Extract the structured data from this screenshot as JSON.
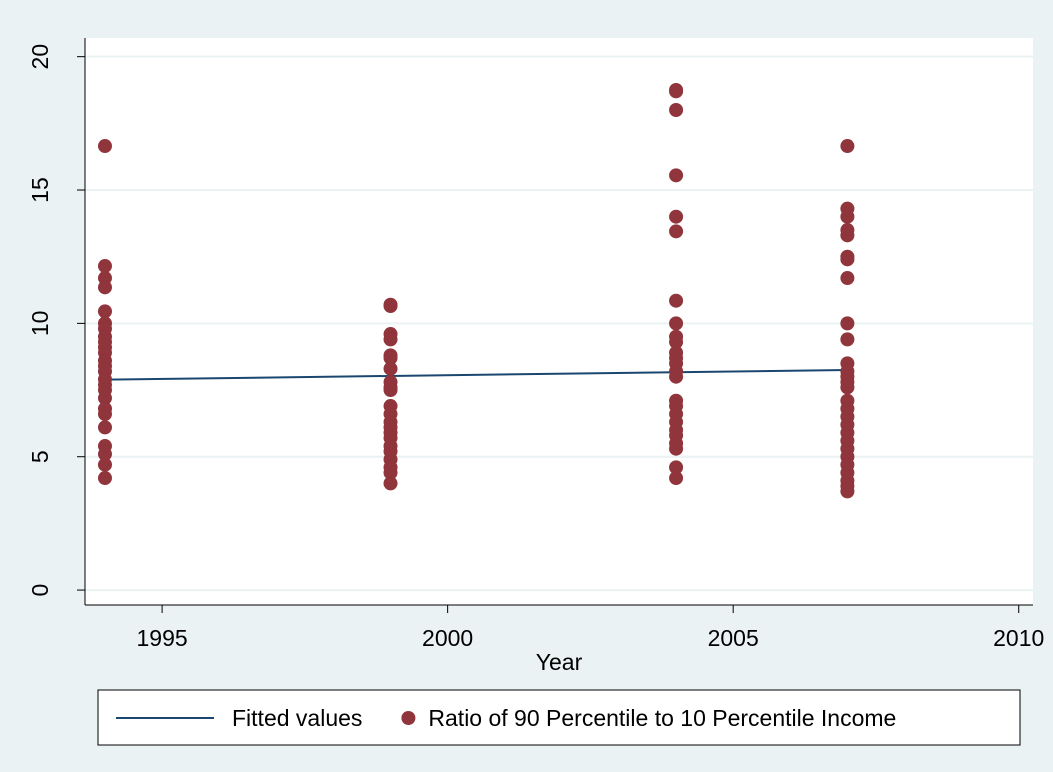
{
  "chart_data": {
    "type": "scatter",
    "xlabel": "Year",
    "xlim": [
      1993.65,
      2010.25
    ],
    "ylim": [
      -0.56,
      20.7
    ],
    "xticks": [
      1995,
      2000,
      2005,
      2010
    ],
    "yticks": [
      0,
      5,
      10,
      15,
      20
    ],
    "grid": true,
    "legend": "bottom",
    "series": [
      {
        "name": "Fitted values",
        "type": "line",
        "color": "#1a476f",
        "x": [
          1994,
          2007
        ],
        "values": [
          7.89,
          8.25
        ]
      },
      {
        "name": "Ratio of 90 Percentile to 10 Percentile Income",
        "type": "scatter",
        "color": "#90353b",
        "x": [
          1994,
          1994,
          1994,
          1994,
          1994,
          1994,
          1994,
          1994,
          1994,
          1994,
          1994,
          1994,
          1994,
          1994,
          1994,
          1994,
          1994,
          1994,
          1994,
          1994,
          1994,
          1994,
          1994,
          1994,
          1994,
          1999,
          1999,
          1999,
          1999,
          1999,
          1999,
          1999,
          1999,
          1999,
          1999,
          1999,
          1999,
          1999,
          1999,
          1999,
          1999,
          1999,
          1999,
          1999,
          1999,
          1999,
          1999,
          2004,
          2004,
          2004,
          2004,
          2004,
          2004,
          2004,
          2004,
          2004,
          2004,
          2004,
          2004,
          2004,
          2004,
          2004,
          2004,
          2004,
          2004,
          2004,
          2004,
          2004,
          2004,
          2004,
          2004,
          2004,
          2007,
          2007,
          2007,
          2007,
          2007,
          2007,
          2007,
          2007,
          2007,
          2007,
          2007,
          2007,
          2007,
          2007,
          2007,
          2007,
          2007,
          2007,
          2007,
          2007,
          2007,
          2007,
          2007,
          2007,
          2007,
          2007,
          2007,
          2007
        ],
        "values": [
          16.65,
          12.15,
          11.7,
          11.35,
          10.45,
          10.0,
          9.8,
          9.5,
          9.3,
          9.1,
          8.9,
          8.6,
          8.4,
          8.2,
          7.9,
          7.7,
          7.5,
          7.2,
          6.8,
          6.6,
          6.1,
          5.4,
          5.1,
          4.7,
          4.2,
          10.7,
          10.65,
          9.6,
          9.4,
          8.8,
          8.7,
          8.3,
          7.8,
          7.6,
          7.5,
          6.9,
          6.6,
          6.3,
          6.1,
          5.9,
          5.7,
          5.4,
          5.2,
          4.9,
          4.6,
          4.4,
          4.0,
          18.75,
          18.7,
          18.0,
          15.55,
          14.0,
          13.45,
          10.85,
          10.0,
          9.5,
          9.3,
          8.9,
          8.7,
          8.5,
          8.2,
          8.0,
          7.1,
          6.9,
          6.6,
          6.3,
          6.0,
          5.8,
          5.5,
          5.3,
          4.6,
          4.2,
          16.65,
          14.3,
          14.0,
          13.5,
          13.3,
          12.5,
          12.4,
          11.7,
          10.0,
          9.4,
          8.5,
          8.2,
          8.0,
          7.8,
          7.6,
          7.1,
          6.8,
          6.5,
          6.2,
          5.9,
          5.6,
          5.3,
          5.0,
          4.7,
          4.4,
          4.1,
          3.9,
          3.7
        ]
      }
    ]
  }
}
